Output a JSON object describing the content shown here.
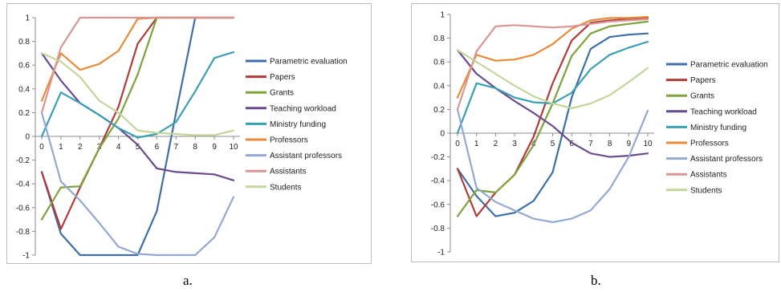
{
  "captions": [
    "a.",
    "b."
  ],
  "chart_data": [
    {
      "type": "line",
      "panel_label": "a.",
      "x": [
        0,
        1,
        2,
        3,
        4,
        5,
        6,
        7,
        8,
        9,
        10
      ],
      "ylim": [
        -1,
        1
      ],
      "yticks": [
        -1,
        -0.8,
        -0.6,
        -0.4,
        -0.2,
        0,
        0.2,
        0.4,
        0.6,
        0.8,
        1
      ],
      "grid": false,
      "legend_position": "right",
      "series": [
        {
          "name": "Parametric evaluation",
          "color": "#3f6fa8",
          "values": [
            -0.3,
            -0.82,
            -1,
            -1,
            -1,
            -1,
            -0.63,
            0.2,
            1,
            1,
            1
          ]
        },
        {
          "name": "Papers",
          "color": "#b03c3a",
          "values": [
            -0.3,
            -0.78,
            -0.43,
            -0.1,
            0.25,
            0.78,
            1,
            1,
            1,
            1,
            1
          ]
        },
        {
          "name": "Grants",
          "color": "#7ea23c",
          "values": [
            -0.7,
            -0.43,
            -0.42,
            -0.1,
            0.15,
            0.52,
            1,
            1,
            1,
            1,
            1
          ]
        },
        {
          "name": "Teaching workload",
          "color": "#6a4b8e",
          "values": [
            0.7,
            0.47,
            0.28,
            0.18,
            0.07,
            -0.07,
            -0.27,
            -0.3,
            -0.31,
            -0.32,
            -0.37
          ]
        },
        {
          "name": "Ministry funding",
          "color": "#3b9fb4",
          "values": [
            0,
            0.37,
            0.28,
            0.18,
            0.07,
            -0.01,
            0.02,
            0.12,
            0.38,
            0.66,
            0.71
          ]
        },
        {
          "name": "Professors",
          "color": "#e88b3a",
          "values": [
            0.3,
            0.7,
            0.56,
            0.61,
            0.72,
            0.99,
            1,
            1,
            1,
            1,
            1
          ]
        },
        {
          "name": "Assistant professors",
          "color": "#93a9d2",
          "values": [
            0.2,
            -0.38,
            -0.54,
            -0.73,
            -0.93,
            -0.99,
            -1,
            -1,
            -1,
            -0.85,
            -0.51
          ]
        },
        {
          "name": "Assistants",
          "color": "#d99694",
          "values": [
            0.2,
            0.75,
            1,
            1,
            1,
            1,
            1,
            1,
            1,
            1,
            1
          ]
        },
        {
          "name": "Students",
          "color": "#c3d69b",
          "values": [
            0.7,
            0.63,
            0.5,
            0.3,
            0.2,
            0.05,
            0.03,
            0.02,
            0.01,
            0.01,
            0.05
          ]
        }
      ]
    },
    {
      "type": "line",
      "panel_label": "b.",
      "x": [
        0,
        1,
        2,
        3,
        4,
        5,
        6,
        7,
        8,
        9,
        10
      ],
      "ylim": [
        -1,
        1
      ],
      "yticks": [
        -1,
        -0.8,
        -0.6,
        -0.4,
        -0.2,
        0,
        0.2,
        0.4,
        0.6,
        0.8,
        1
      ],
      "grid": false,
      "legend_position": "right",
      "series": [
        {
          "name": "Parametric evaluation",
          "color": "#3f6fa8",
          "values": [
            -0.3,
            -0.53,
            -0.7,
            -0.67,
            -0.57,
            -0.33,
            0.3,
            0.71,
            0.81,
            0.83,
            0.84
          ]
        },
        {
          "name": "Papers",
          "color": "#b03c3a",
          "values": [
            -0.3,
            -0.7,
            -0.5,
            -0.35,
            -0.03,
            0.42,
            0.78,
            0.93,
            0.95,
            0.96,
            0.97
          ]
        },
        {
          "name": "Grants",
          "color": "#7ea23c",
          "values": [
            -0.7,
            -0.48,
            -0.5,
            -0.35,
            -0.1,
            0.25,
            0.65,
            0.84,
            0.9,
            0.92,
            0.94
          ]
        },
        {
          "name": "Teaching workload",
          "color": "#6a4b8e",
          "values": [
            0.7,
            0.5,
            0.38,
            0.27,
            0.17,
            0.06,
            -0.08,
            -0.17,
            -0.2,
            -0.19,
            -0.17
          ]
        },
        {
          "name": "Ministry funding",
          "color": "#3b9fb4",
          "values": [
            0,
            0.42,
            0.38,
            0.3,
            0.26,
            0.25,
            0.34,
            0.54,
            0.66,
            0.72,
            0.77
          ]
        },
        {
          "name": "Professors",
          "color": "#e88b3a",
          "values": [
            0.3,
            0.66,
            0.61,
            0.62,
            0.66,
            0.75,
            0.88,
            0.95,
            0.97,
            0.97,
            0.98
          ]
        },
        {
          "name": "Assistant professors",
          "color": "#93a9d2",
          "values": [
            0.2,
            -0.46,
            -0.58,
            -0.65,
            -0.72,
            -0.75,
            -0.72,
            -0.65,
            -0.47,
            -0.2,
            0.19
          ]
        },
        {
          "name": "Assistants",
          "color": "#d99694",
          "values": [
            0.2,
            0.69,
            0.9,
            0.91,
            0.9,
            0.89,
            0.9,
            0.92,
            0.94,
            0.95,
            0.96
          ]
        },
        {
          "name": "Students",
          "color": "#c3d69b",
          "values": [
            0.7,
            0.6,
            0.5,
            0.4,
            0.31,
            0.25,
            0.21,
            0.25,
            0.32,
            0.43,
            0.55
          ]
        }
      ]
    }
  ]
}
